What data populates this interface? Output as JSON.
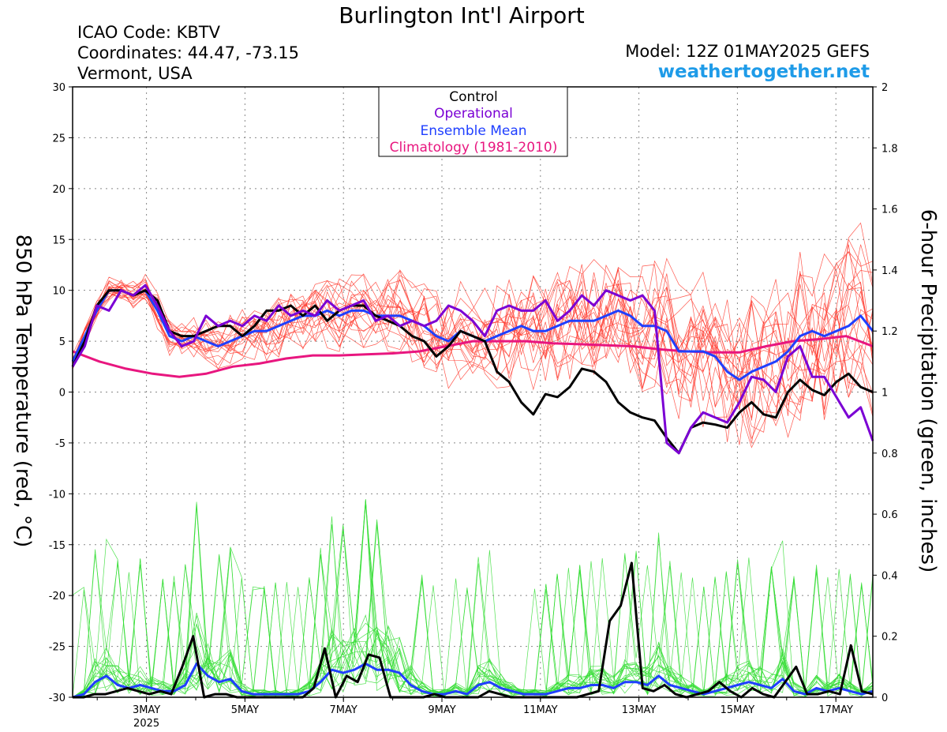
{
  "chart_data": {
    "type": "line",
    "title": "Burlington Int'l Airport",
    "header_left": [
      "ICAO Code: KBTV",
      "Coordinates: 44.47, -73.15",
      "Vermont, USA"
    ],
    "model": "Model: 12Z 01MAY2025 GEFS",
    "site": "weathertogether.net",
    "ylabel_left": "850 hPa Temperature (red, °C)",
    "ylabel_right": "6-hour Precipitation (green, inches)",
    "ylim_left": [
      -30,
      30
    ],
    "ylim_right": [
      0,
      2
    ],
    "yticks_left": [
      30,
      25,
      20,
      15,
      10,
      5,
      0,
      -5,
      -10,
      -15,
      -20,
      -25,
      -30
    ],
    "yticks_right": [
      "2",
      "1.8",
      "1.6",
      "1.4",
      "1.2",
      "1",
      "0.8",
      "0.6",
      "0.4",
      "0.2",
      "0"
    ],
    "x_start": "2025-05-01 12Z",
    "x_end": "2025-05-17 18Z",
    "xticks": [
      {
        "label": "3MAY",
        "sub": "2025",
        "day": 3
      },
      {
        "label": "5MAY",
        "sub": "",
        "day": 5
      },
      {
        "label": "7MAY",
        "sub": "",
        "day": 7
      },
      {
        "label": "9MAY",
        "sub": "",
        "day": 9
      },
      {
        "label": "11MAY",
        "sub": "",
        "day": 11
      },
      {
        "label": "13MAY",
        "sub": "",
        "day": 13
      },
      {
        "label": "15MAY",
        "sub": "",
        "day": 15
      },
      {
        "label": "17MAY",
        "sub": "",
        "day": 17
      }
    ],
    "grid": true,
    "legend": {
      "placement": "top-center",
      "entries": [
        {
          "label": "Control",
          "color": "#000000"
        },
        {
          "label": "Operational",
          "color": "#7b00d4"
        },
        {
          "label": "Ensemble Mean",
          "color": "#1f3fff"
        },
        {
          "label": "Climatology (1981-2010)",
          "color": "#e8167f"
        }
      ]
    },
    "colors": {
      "members_temp": "#ff3b2f",
      "members_precip": "#33dd33",
      "site": "#1e9be8"
    },
    "temperature_series": [
      {
        "name": "Control",
        "color": "#000000",
        "values": [
          2.5,
          5,
          8.5,
          10,
          10,
          9.5,
          10,
          9,
          6,
          5.5,
          5.5,
          6,
          6.5,
          6.5,
          5.5,
          6.5,
          8,
          8,
          8.5,
          7.5,
          8.5,
          7,
          8,
          8.5,
          8.5,
          7.5,
          7,
          6.5,
          5.5,
          5,
          3.5,
          4.5,
          6,
          5.5,
          5,
          2,
          1,
          -1,
          -2.2,
          -0.2,
          -0.5,
          0.5,
          2.3,
          2,
          1,
          -1,
          -2,
          -2.5,
          -2.8,
          -4.5,
          -6,
          -3.5,
          -3,
          -3.2,
          -3.5,
          -2,
          -1,
          -2.2,
          -2.5,
          0,
          1.2,
          0.2,
          -0.3,
          1,
          1.8,
          0.5,
          0
        ]
      },
      {
        "name": "Operational",
        "color": "#7b00d4",
        "values": [
          2.5,
          4.5,
          8.5,
          8,
          10,
          9.5,
          10.5,
          8.5,
          6,
          4.5,
          5,
          7.5,
          6.5,
          7,
          6.5,
          7.5,
          7,
          8.5,
          7.5,
          8,
          7.5,
          9,
          8,
          8.5,
          9,
          7,
          7.5,
          6.5,
          7,
          6.5,
          7,
          8.5,
          8,
          7,
          5.5,
          8,
          8.5,
          8,
          8,
          9,
          7,
          8,
          9.5,
          8.5,
          10,
          9.5,
          9,
          9.5,
          8,
          -5,
          -6,
          -3.5,
          -2,
          -2.5,
          -3,
          -1,
          1.5,
          1.2,
          0,
          3.5,
          4.5,
          1.5,
          1.5,
          -0.5,
          -2.5,
          -1.5,
          -4.8
        ]
      },
      {
        "name": "Ensemble Mean",
        "color": "#1f3fff",
        "values": [
          3,
          5.5,
          8,
          10,
          10,
          9.5,
          10,
          8,
          5.5,
          5,
          5.5,
          5,
          4.5,
          5,
          5.5,
          6,
          6,
          6.5,
          7,
          7.5,
          7.5,
          8,
          7.5,
          8,
          8,
          7.5,
          7.5,
          7.5,
          7,
          6.5,
          5.5,
          5,
          6,
          5.5,
          5,
          5.5,
          6,
          6.5,
          6,
          6,
          6.5,
          7,
          7,
          7,
          7.5,
          8,
          7.5,
          6.5,
          6.5,
          6,
          4,
          4,
          4,
          3.5,
          2,
          1.2,
          2,
          2.5,
          3,
          4,
          5.5,
          6,
          5.5,
          6,
          6.5,
          7.5,
          6
        ]
      },
      {
        "name": "Climatology (1981-2010)",
        "color": "#e8167f",
        "values": [
          4,
          3,
          2.3,
          1.8,
          1.5,
          1.8,
          2.5,
          2.8,
          3.3,
          3.6,
          3.6,
          3.7,
          3.8,
          4,
          4.5,
          5,
          5,
          5,
          4.8,
          4.7,
          4.6,
          4.5,
          4.2,
          4,
          3.9,
          3.9,
          4.5,
          5,
          5.2,
          5.5,
          4.5
        ]
      }
    ],
    "precip_series": [
      {
        "name": "Control",
        "color": "#000000",
        "values": [
          0,
          0,
          0.01,
          0.01,
          0.02,
          0.03,
          0.02,
          0.01,
          0.02,
          0.01,
          0.1,
          0.2,
          0,
          0.01,
          0.01,
          0,
          0,
          0,
          0,
          0,
          0,
          0,
          0.03,
          0.16,
          0,
          0.07,
          0.05,
          0.14,
          0.13,
          0,
          0,
          0,
          0,
          0.01,
          0,
          0,
          0,
          0,
          0.02,
          0.01,
          0,
          0,
          0,
          0,
          0,
          0,
          0,
          0.01,
          0.02,
          0.25,
          0.3,
          0.44,
          0.03,
          0.02,
          0.04,
          0.01,
          0,
          0.01,
          0.02,
          0.05,
          0.02,
          0,
          0.03,
          0.01,
          0,
          0.05,
          0.1,
          0.01,
          0.01,
          0.02,
          0.01,
          0.17,
          0.02,
          0.01
        ]
      },
      {
        "name": "Ensemble Mean",
        "color": "#1f3fff",
        "values": [
          0,
          0.01,
          0.05,
          0.07,
          0.04,
          0.03,
          0.04,
          0.03,
          0.02,
          0.02,
          0.04,
          0.11,
          0.07,
          0.05,
          0.06,
          0.02,
          0.01,
          0.01,
          0.01,
          0.01,
          0.01,
          0.02,
          0.05,
          0.09,
          0.08,
          0.09,
          0.11,
          0.09,
          0.09,
          0.08,
          0.04,
          0.02,
          0.01,
          0.01,
          0.02,
          0.01,
          0.04,
          0.05,
          0.03,
          0.02,
          0.01,
          0.01,
          0.01,
          0.02,
          0.03,
          0.03,
          0.04,
          0.04,
          0.03,
          0.05,
          0.05,
          0.04,
          0.07,
          0.04,
          0.03,
          0.02,
          0.01,
          0.02,
          0.03,
          0.04,
          0.05,
          0.04,
          0.03,
          0.06,
          0.02,
          0.01,
          0.03,
          0.02,
          0.03,
          0.02,
          0.01,
          0.02
        ]
      }
    ]
  }
}
